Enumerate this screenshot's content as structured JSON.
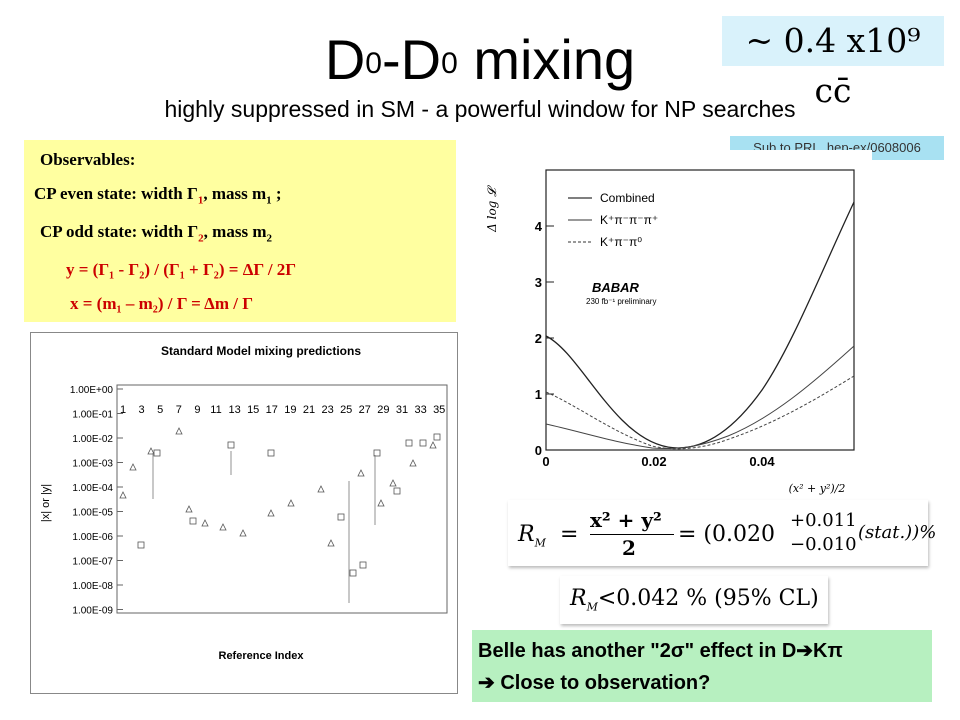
{
  "title": {
    "d_left": "D",
    "sup_left": "0",
    "dash": "-D",
    "sup_right": "0",
    "rest": " mixing"
  },
  "subtitle": "highly suppressed in SM - a powerful window for NP searches",
  "factor": "~ 0.4 x10⁹  cc̄",
  "reference": "Sub to PRL, hep-ex/0608006",
  "observables": {
    "heading": "Observables:",
    "even_label": "CP even state:",
    "even_text": "width Γ",
    "even_sub": "1",
    "even_mass": ",  mass m",
    "even_mass_sub": "1",
    "even_end": " ;",
    "odd_label": "CP odd state:",
    "odd_text": "width Γ",
    "odd_sub": "2",
    "odd_mass": ",  mass m",
    "odd_mass_sub": "2",
    "y_formula": "y = (Γ₁ - Γ₂) / (Γ₁ + Γ₂) = ΔΓ / 2Γ",
    "x_formula": "x = (m₁ – m₂) / Γ = Δm / Γ"
  },
  "sm_plot": {
    "title": "Standard Model mixing predictions",
    "xlabel": "Reference Index",
    "ylabel": "|x| or |y|",
    "yticks": [
      "1.00E+00",
      "1.00E-01",
      "1.00E-02",
      "1.00E-03",
      "1.00E-04",
      "1.00E-05",
      "1.00E-06",
      "1.00E-07",
      "1.00E-08",
      "1.00E-09"
    ],
    "xticks": [
      "1",
      "3",
      "5",
      "7",
      "9",
      "11",
      "13",
      "15",
      "17",
      "19",
      "21",
      "23",
      "25",
      "27",
      "29",
      "31",
      "33",
      "35"
    ]
  },
  "babar_plot": {
    "ylabel": "Δ log 𝓛",
    "xlabel": "(x² + y²)/2",
    "xticks": [
      "0",
      "0.02",
      "0.04"
    ],
    "yticks": [
      "0",
      "1",
      "2",
      "3",
      "4"
    ],
    "legend": [
      "Combined",
      "K⁺π⁻π⁻π⁺",
      "K⁺π⁻π⁰"
    ],
    "brand": "BABAR",
    "note": "230 fb⁻¹ preliminary"
  },
  "rm": {
    "lhs": "R",
    "lhs_sub": "M",
    "eq": " = ",
    "frac_num": "x² + y²",
    "frac_den": "2",
    "rhs": " = (0.020",
    "up": "+0.011",
    "down": "−0.010",
    "tail": " (stat.))%"
  },
  "cl": {
    "lhs": "R",
    "lhs_sub": "M",
    "rhs": "<0.042 % (95% CL)"
  },
  "belle": {
    "line1": "Belle has another \"2σ\" effect in D➔Kπ",
    "line2": "➔ Close to observation?"
  }
}
